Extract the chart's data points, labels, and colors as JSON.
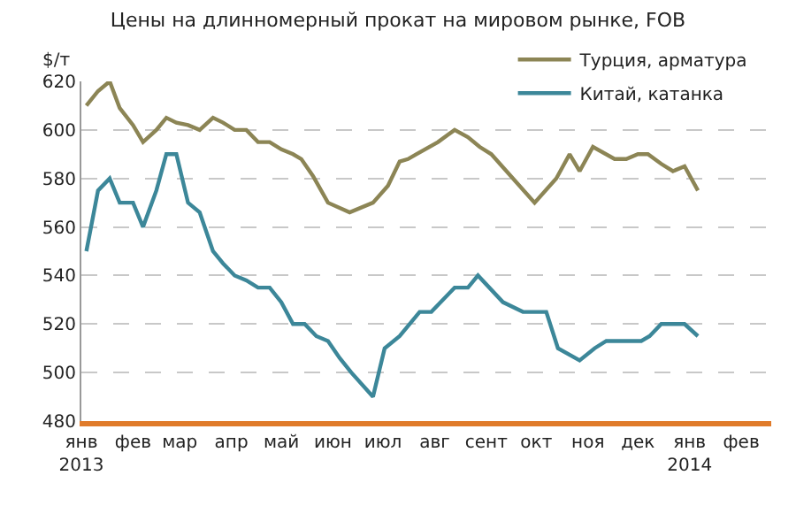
{
  "chart_data": {
    "type": "line",
    "title": "Цены на длинномерный прокат на мировом рынке, FOB",
    "ylabel": "$/т",
    "xlim": [
      "2013-01-01",
      "2014-02-19"
    ],
    "xticks": [
      {
        "value": "2013-01-01",
        "label": "янв\n2013"
      },
      {
        "value": "2013-02-01",
        "label": "фев"
      },
      {
        "value": "2013-03-01",
        "label": "мар"
      },
      {
        "value": "2013-04-01",
        "label": "апр"
      },
      {
        "value": "2013-05-01",
        "label": "май"
      },
      {
        "value": "2013-06-01",
        "label": "июн"
      },
      {
        "value": "2013-07-01",
        "label": "июл"
      },
      {
        "value": "2013-08-01",
        "label": "авг"
      },
      {
        "value": "2013-09-01",
        "label": "сент"
      },
      {
        "value": "2013-10-01",
        "label": "окт"
      },
      {
        "value": "2013-11-01",
        "label": "ноя"
      },
      {
        "value": "2013-12-01",
        "label": "дек"
      },
      {
        "value": "2014-01-01",
        "label": "янв\n2014"
      },
      {
        "value": "2014-02-01",
        "label": "фев"
      }
    ],
    "ylim": [
      480,
      620
    ],
    "yticks": [
      480,
      500,
      520,
      540,
      560,
      580,
      600,
      620
    ],
    "grid": "y",
    "legend": "top right",
    "line_style": "solid",
    "marker": "none",
    "series": [
      {
        "name": "Турция, арматура",
        "color": "#8c8555",
        "x": [
          "2013-01-04",
          "2013-01-11",
          "2013-01-18",
          "2013-01-24",
          "2013-02-01",
          "2013-02-07",
          "2013-02-15",
          "2013-02-21",
          "2013-02-27",
          "2013-03-06",
          "2013-03-13",
          "2013-03-21",
          "2013-03-27",
          "2013-04-03",
          "2013-04-10",
          "2013-04-17",
          "2013-04-24",
          "2013-05-01",
          "2013-05-08",
          "2013-05-13",
          "2013-05-20",
          "2013-05-29",
          "2013-06-11",
          "2013-06-25",
          "2013-07-04",
          "2013-07-11",
          "2013-07-16",
          "2013-07-21",
          "2013-08-03",
          "2013-08-13",
          "2013-08-21",
          "2013-08-28",
          "2013-09-04",
          "2013-09-30",
          "2013-10-13",
          "2013-10-21",
          "2013-10-27",
          "2013-11-04",
          "2013-11-17",
          "2013-11-24",
          "2013-12-01",
          "2013-12-07",
          "2013-12-15",
          "2013-12-22",
          "2013-12-29",
          "2014-01-06"
        ],
        "values": [
          610,
          616,
          620,
          609,
          602,
          595,
          600,
          605,
          603,
          602,
          600,
          605,
          603,
          600,
          600,
          595,
          595,
          592,
          590,
          588,
          581,
          570,
          566,
          570,
          577,
          587,
          588,
          590,
          595,
          600,
          597,
          593,
          590,
          570,
          580,
          590,
          583,
          593,
          588,
          588,
          590,
          590,
          586,
          583,
          585,
          575
        ]
      },
      {
        "name": "Китай, катанка",
        "color": "#3c8799",
        "x": [
          "2013-01-04",
          "2013-01-11",
          "2013-01-18",
          "2013-01-24",
          "2013-02-01",
          "2013-02-07",
          "2013-02-15",
          "2013-02-21",
          "2013-02-27",
          "2013-03-06",
          "2013-03-13",
          "2013-03-21",
          "2013-03-27",
          "2013-04-03",
          "2013-04-10",
          "2013-04-17",
          "2013-04-24",
          "2013-05-01",
          "2013-05-08",
          "2013-05-15",
          "2013-05-22",
          "2013-05-29",
          "2013-06-05",
          "2013-06-12",
          "2013-06-25",
          "2013-07-02",
          "2013-07-11",
          "2013-07-23",
          "2013-07-30",
          "2013-08-13",
          "2013-08-21",
          "2013-08-27",
          "2013-09-11",
          "2013-09-23",
          "2013-10-07",
          "2013-10-14",
          "2013-10-27",
          "2013-11-05",
          "2013-11-12",
          "2013-12-03",
          "2013-12-08",
          "2013-12-15",
          "2013-12-29",
          "2014-01-06"
        ],
        "values": [
          550,
          575,
          580,
          570,
          570,
          560,
          575,
          590,
          590,
          570,
          566,
          550,
          545,
          540,
          538,
          535,
          535,
          529,
          520,
          520,
          515,
          513,
          506,
          500,
          490,
          510,
          515,
          525,
          525,
          535,
          535,
          540,
          529,
          525,
          525,
          510,
          505,
          510,
          513,
          513,
          515,
          520,
          520,
          515
        ]
      }
    ]
  }
}
